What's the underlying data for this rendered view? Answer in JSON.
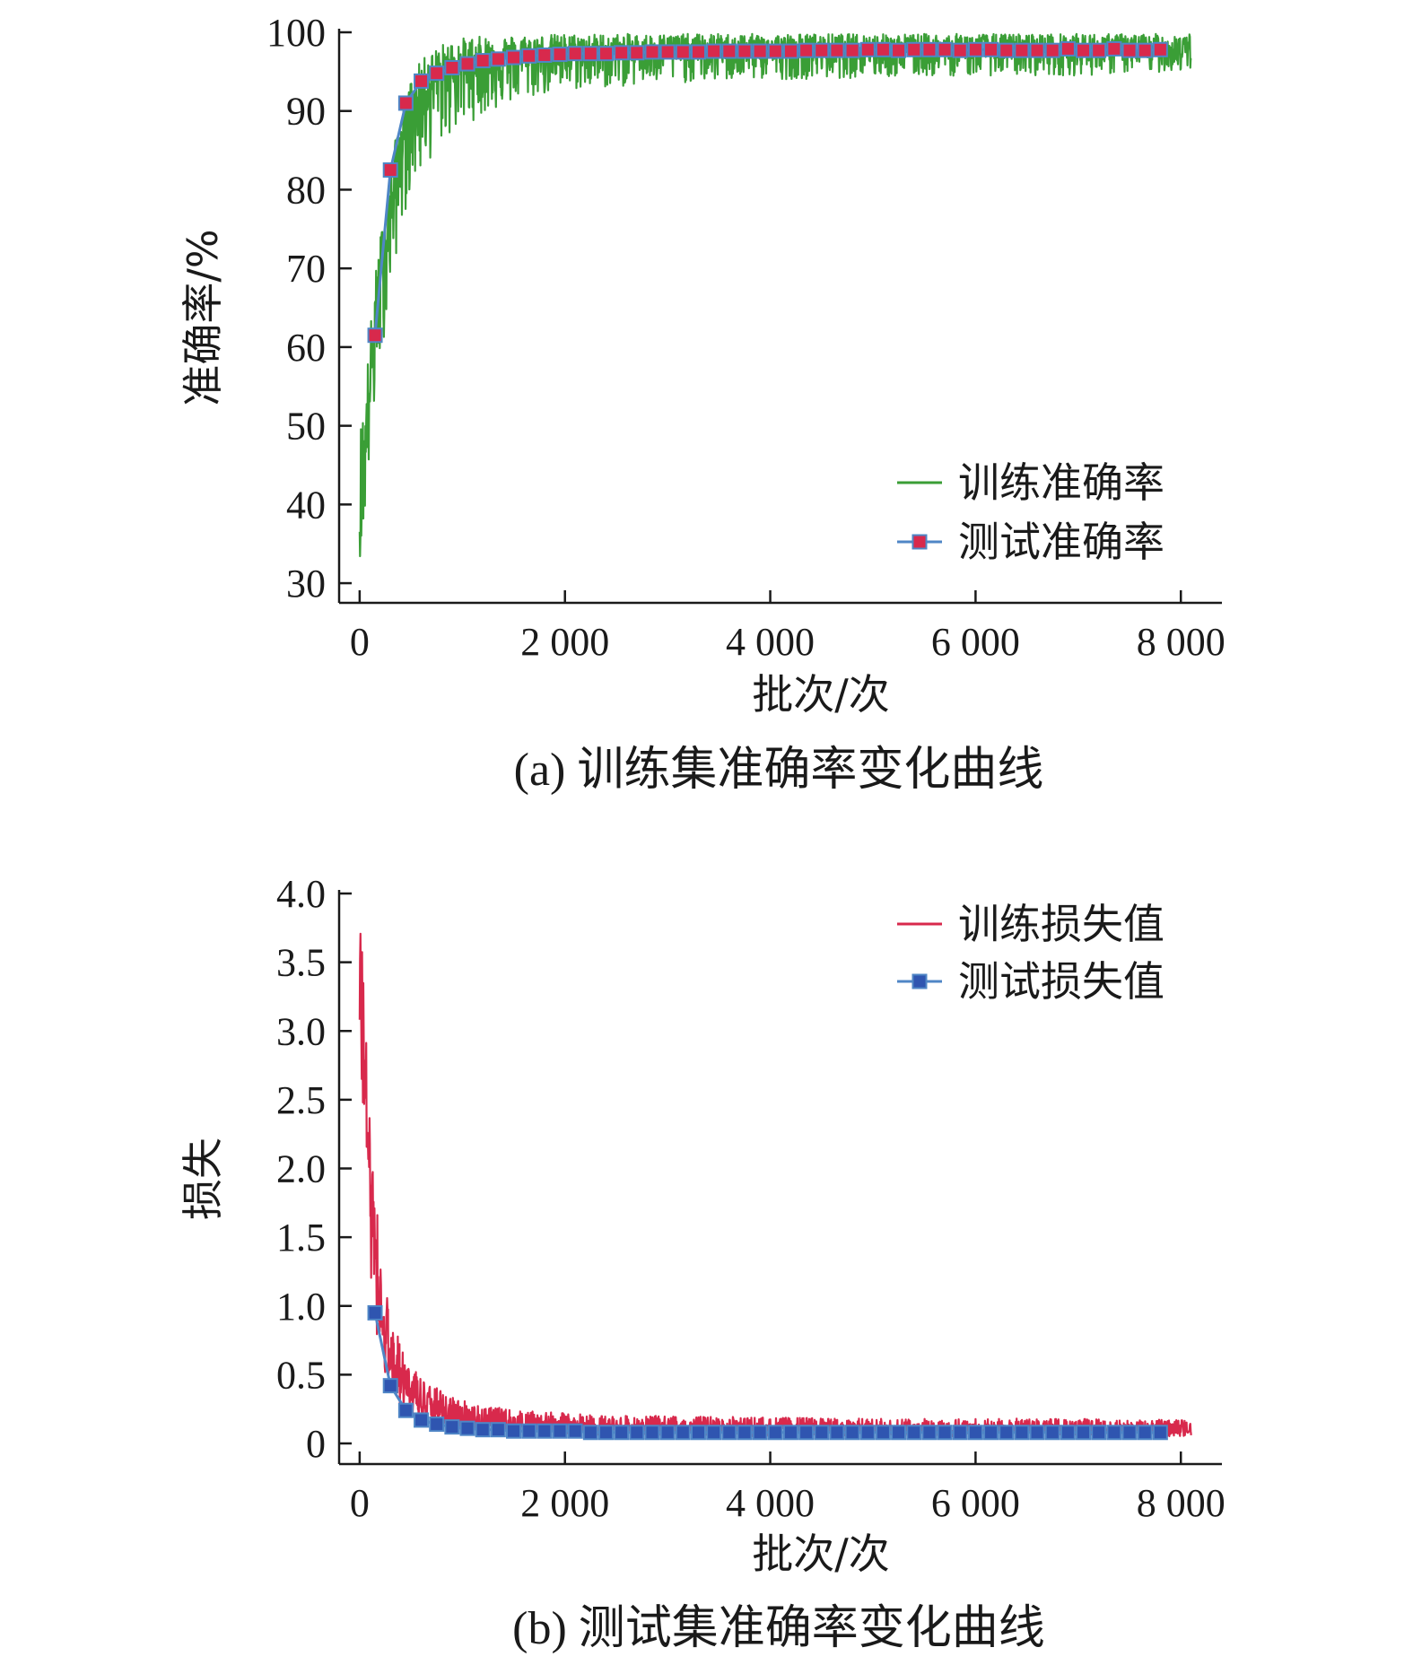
{
  "colors": {
    "train_accuracy": "#3a9e36",
    "test_line": "#4f86c6",
    "test_accuracy_marker": "#d8294c",
    "train_loss": "#d8294c",
    "test_loss_marker": "#2f55b0",
    "axis": "#1a1a1a"
  },
  "chart_data": [
    {
      "type": "line",
      "caption": "(a) 训练集准确率变化曲线",
      "xlabel": "批次/次",
      "ylabel": "准确率/%",
      "xlim": [
        -200,
        8400
      ],
      "ylim": [
        27.5,
        100
      ],
      "x_ticks": [
        0,
        2000,
        4000,
        6000,
        8000
      ],
      "x_tick_labels": [
        "0",
        "2 000",
        "4 000",
        "6 000",
        "8 000"
      ],
      "y_ticks": [
        30,
        40,
        50,
        60,
        70,
        80,
        90,
        100
      ],
      "y_tick_labels": [
        "30",
        "40",
        "50",
        "60",
        "70",
        "80",
        "90",
        "100"
      ],
      "legend_position": "bottom-right",
      "series": [
        {
          "name": "训练准确率",
          "kind": "noisy-line",
          "x": [
            0,
            50,
            100,
            150,
            200,
            300,
            400,
            500,
            600,
            700,
            800,
            1000,
            1200,
            1500,
            1800,
            2000,
            2500,
            3000,
            4000,
            5000,
            6000,
            7000,
            8000
          ],
          "y": [
            37,
            45,
            55,
            62,
            68,
            77,
            85,
            89.5,
            92,
            93.5,
            94.5,
            95.5,
            96,
            96.5,
            97,
            97,
            97.2,
            97.4,
            97.5,
            97.6,
            97.7,
            97.8,
            97.8
          ],
          "band_lower": [
            33,
            38,
            45,
            52,
            58,
            67,
            75,
            80,
            82,
            84,
            86,
            88,
            89.5,
            91,
            92,
            92.5,
            93,
            93.5,
            94,
            94.2,
            94.5,
            94.5,
            95
          ],
          "band_upper": [
            50,
            54,
            62,
            69,
            74,
            83,
            90,
            94,
            96.5,
            97.5,
            98.5,
            99.3,
            99.5,
            99.6,
            99.7,
            99.8,
            99.8,
            99.8,
            99.8,
            99.8,
            99.8,
            99.8,
            99.8
          ]
        },
        {
          "name": "测试准确率",
          "kind": "line-markers",
          "x": [
            150,
            300,
            450,
            600,
            750,
            900,
            1050,
            1200,
            1350,
            1500,
            1650,
            1800,
            1950,
            2100,
            2250,
            2400,
            2550,
            2700,
            2850,
            3000,
            3150,
            3300,
            3450,
            3600,
            3750,
            3900,
            4050,
            4200,
            4350,
            4500,
            4650,
            4800,
            4950,
            5100,
            5250,
            5400,
            5550,
            5700,
            5850,
            6000,
            6150,
            6300,
            6450,
            6600,
            6750,
            6900,
            7050,
            7200,
            7350,
            7500,
            7650,
            7800
          ],
          "y": [
            61.5,
            82.5,
            91,
            93.8,
            94.8,
            95.5,
            96,
            96.4,
            96.6,
            96.8,
            97,
            97.1,
            97.2,
            97.3,
            97.3,
            97.3,
            97.4,
            97.4,
            97.5,
            97.5,
            97.5,
            97.5,
            97.6,
            97.6,
            97.6,
            97.6,
            97.6,
            97.6,
            97.7,
            97.7,
            97.7,
            97.7,
            97.8,
            97.8,
            97.7,
            97.8,
            97.8,
            97.8,
            97.7,
            97.8,
            97.8,
            97.7,
            97.7,
            97.7,
            97.7,
            97.9,
            97.7,
            97.7,
            97.9,
            97.7,
            97.7,
            97.8
          ]
        }
      ]
    },
    {
      "type": "line",
      "caption": "(b) 测试集准确率变化曲线",
      "xlabel": "批次/次",
      "ylabel": "损失",
      "xlim": [
        -200,
        8400
      ],
      "ylim": [
        -0.15,
        4.0
      ],
      "x_ticks": [
        0,
        2000,
        4000,
        6000,
        8000
      ],
      "x_tick_labels": [
        "0",
        "2 000",
        "4 000",
        "6 000",
        "8 000"
      ],
      "y_ticks": [
        0,
        0.5,
        1.0,
        1.5,
        2.0,
        2.5,
        3.0,
        3.5,
        4.0
      ],
      "y_tick_labels": [
        "0",
        "0.5",
        "1.0",
        "1.5",
        "2.0",
        "2.5",
        "3.0",
        "3.5",
        "4.0"
      ],
      "legend_position": "top-right",
      "series": [
        {
          "name": "训练损失值",
          "kind": "noisy-line",
          "x": [
            0,
            25,
            50,
            100,
            150,
            200,
            300,
            400,
            500,
            600,
            800,
            1000,
            1200,
            1500,
            2000,
            2500,
            3000,
            4000,
            5000,
            6000,
            7000,
            8000
          ],
          "y": [
            3.5,
            3.1,
            2.6,
            1.9,
            1.4,
            1.0,
            0.65,
            0.45,
            0.34,
            0.27,
            0.2,
            0.17,
            0.15,
            0.13,
            0.12,
            0.11,
            0.1,
            0.1,
            0.09,
            0.09,
            0.09,
            0.09
          ],
          "band_lower": [
            3.0,
            2.4,
            1.9,
            1.3,
            0.9,
            0.6,
            0.35,
            0.22,
            0.15,
            0.12,
            0.09,
            0.08,
            0.07,
            0.06,
            0.05,
            0.05,
            0.05,
            0.05,
            0.05,
            0.05,
            0.05,
            0.05
          ],
          "band_upper": [
            3.95,
            3.6,
            3.1,
            2.5,
            1.9,
            1.4,
            0.95,
            0.72,
            0.58,
            0.48,
            0.38,
            0.32,
            0.28,
            0.24,
            0.22,
            0.2,
            0.2,
            0.19,
            0.18,
            0.18,
            0.18,
            0.17
          ]
        },
        {
          "name": "测试损失值",
          "kind": "line-markers",
          "x": [
            150,
            300,
            450,
            600,
            750,
            900,
            1050,
            1200,
            1350,
            1500,
            1650,
            1800,
            1950,
            2100,
            2250,
            2400,
            2550,
            2700,
            2850,
            3000,
            3150,
            3300,
            3450,
            3600,
            3750,
            3900,
            4050,
            4200,
            4350,
            4500,
            4650,
            4800,
            4950,
            5100,
            5250,
            5400,
            5550,
            5700,
            5850,
            6000,
            6150,
            6300,
            6450,
            6600,
            6750,
            6900,
            7050,
            7200,
            7350,
            7500,
            7650,
            7800
          ],
          "y": [
            0.95,
            0.42,
            0.24,
            0.17,
            0.14,
            0.12,
            0.11,
            0.1,
            0.1,
            0.09,
            0.09,
            0.09,
            0.09,
            0.09,
            0.08,
            0.08,
            0.08,
            0.08,
            0.08,
            0.08,
            0.08,
            0.08,
            0.08,
            0.08,
            0.08,
            0.08,
            0.08,
            0.08,
            0.08,
            0.08,
            0.08,
            0.08,
            0.08,
            0.08,
            0.08,
            0.08,
            0.08,
            0.08,
            0.08,
            0.08,
            0.08,
            0.08,
            0.08,
            0.08,
            0.08,
            0.08,
            0.08,
            0.08,
            0.08,
            0.08,
            0.08,
            0.08
          ]
        }
      ]
    }
  ]
}
